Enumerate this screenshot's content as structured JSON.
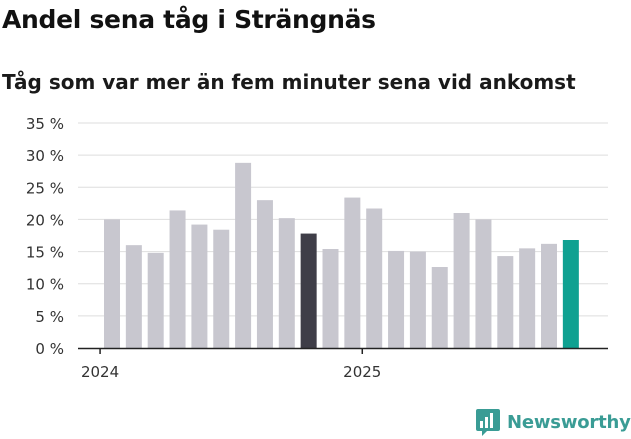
{
  "chart_data": {
    "type": "bar",
    "title": "Andel sena tåg i Strängnäs",
    "subtitle": "Tåg som var mer än fem minuter sena vid ankomst",
    "xlabel": "",
    "ylabel": "",
    "ylim": [
      0,
      35
    ],
    "yticks": [
      "0 %",
      "5 %",
      "10 %",
      "15 %",
      "20 %",
      "25 %",
      "30 %",
      "35 %"
    ],
    "ytick_values": [
      0,
      5,
      10,
      15,
      20,
      25,
      30,
      35
    ],
    "xticks": [
      {
        "label": "2024",
        "index": 0
      },
      {
        "label": "2025",
        "index": 12
      }
    ],
    "grid": true,
    "values": [
      20.0,
      16.0,
      14.8,
      21.4,
      19.2,
      18.4,
      28.8,
      23.0,
      20.2,
      17.8,
      15.4,
      23.4,
      21.7,
      15.1,
      15.0,
      12.6,
      21.0,
      20.0,
      14.3,
      15.5,
      16.2,
      16.8
    ],
    "colors": {
      "default": "#c8c7cf",
      "highlight_dark": "#3f3e48",
      "highlight_latest": "#0fa191",
      "grid": "#dedede",
      "axis": "#222222"
    },
    "highlight_dark_index": 9,
    "highlight_latest_index": 21
  },
  "branding": {
    "name": "Newsworthy",
    "icon": "newsworthy-logo-icon"
  }
}
